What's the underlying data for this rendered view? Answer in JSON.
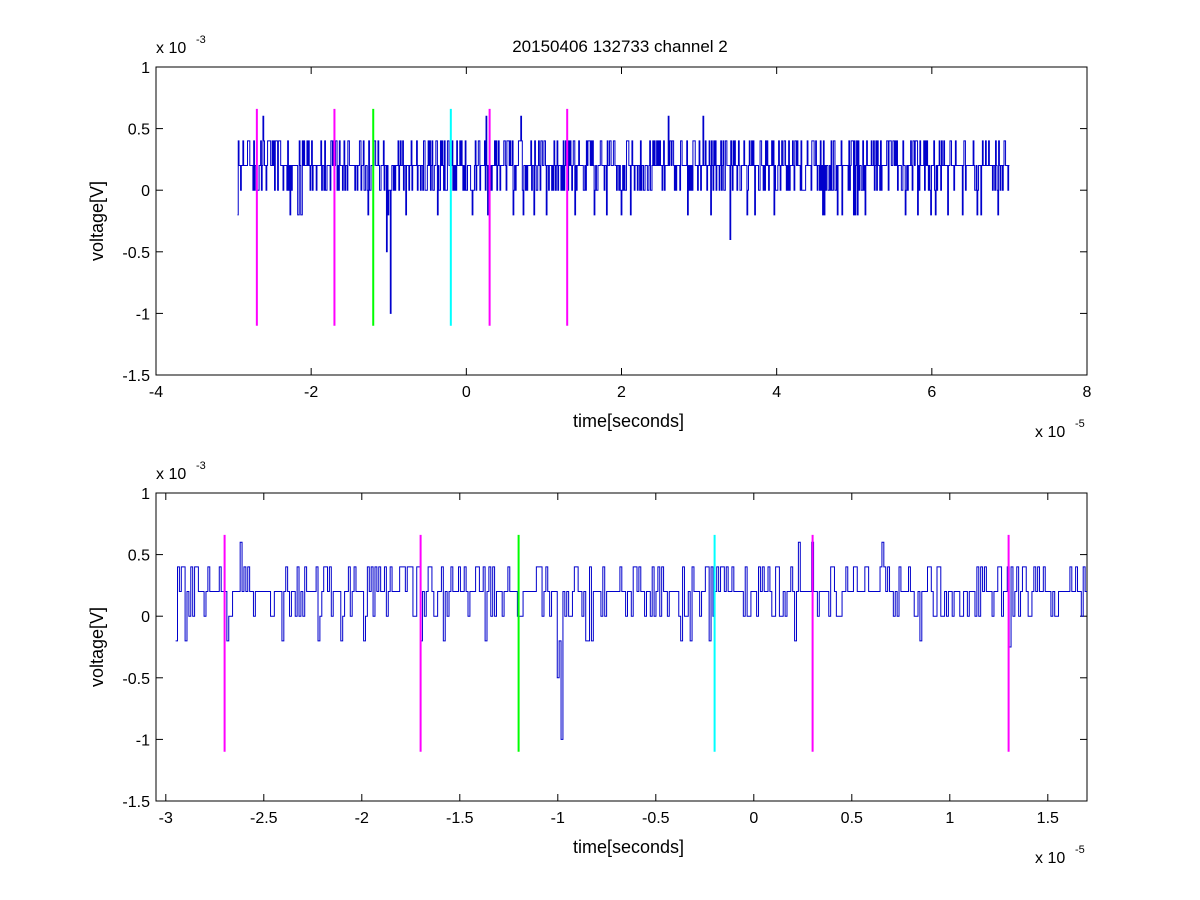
{
  "title": "20150406 132733 channel 2",
  "chart_data": [
    {
      "type": "line",
      "title": "20150406 132733 channel 2",
      "xlabel": "time[seconds]",
      "ylabel": "voltage[V]",
      "x_multiplier_label": "x 10",
      "x_multiplier_exponent": "-5",
      "y_multiplier_label": "x 10",
      "y_multiplier_exponent": "-3",
      "xlim": [
        -4e-05,
        8e-05
      ],
      "ylim": [
        -0.0015,
        0.001
      ],
      "xticks": [
        -4e-05,
        -2e-05,
        0,
        2e-05,
        4e-05,
        6e-05,
        8e-05
      ],
      "xtick_labels": [
        "-4",
        "-2",
        "0",
        "2",
        "4",
        "6",
        "8"
      ],
      "yticks": [
        -0.0015,
        -0.001,
        -0.0005,
        0,
        0.0005,
        0.001
      ],
      "ytick_labels": [
        "-1.5",
        "-1",
        "-0.5",
        "0",
        "0.5",
        "1"
      ],
      "grid": false,
      "series": [
        {
          "color": "#0000cc",
          "x_range": [
            -2.95e-05,
            7e-05
          ],
          "baseline": 0.0002,
          "noise_levels": [
            -0.0002,
            0,
            0.0002,
            0.0004
          ],
          "spikes": [
            {
              "x": -2.62e-05,
              "y": 0.0006
            },
            {
              "x": 2.5e-06,
              "y": 0.0006
            },
            {
              "x": 7e-06,
              "y": 0.0006
            },
            {
              "x": 2.6e-05,
              "y": 0.0006
            },
            {
              "x": 3.05e-05,
              "y": 0.0006
            },
            {
              "x": -9.8e-06,
              "y": -0.001
            },
            {
              "x": -1.03e-05,
              "y": -0.0005
            },
            {
              "x": 3.4e-05,
              "y": -0.0004
            },
            {
              "x": -2.95e-05,
              "y": -0.0002
            }
          ]
        }
      ],
      "markers": [
        {
          "x": -2.7e-05,
          "y0": -0.0011,
          "y1": 0.00066,
          "color": "#ff00ff"
        },
        {
          "x": -1.7e-05,
          "y0": -0.0011,
          "y1": 0.00066,
          "color": "#ff00ff"
        },
        {
          "x": -1.2e-05,
          "y0": -0.0011,
          "y1": 0.00066,
          "color": "#00ff00"
        },
        {
          "x": -2e-06,
          "y0": -0.0011,
          "y1": 0.00066,
          "color": "#00ffff"
        },
        {
          "x": 3e-06,
          "y0": -0.0011,
          "y1": 0.00066,
          "color": "#ff00ff"
        },
        {
          "x": 1.3e-05,
          "y0": -0.0011,
          "y1": 0.00066,
          "color": "#ff00ff"
        }
      ]
    },
    {
      "type": "line",
      "title": "",
      "xlabel": "time[seconds]",
      "ylabel": "voltage[V]",
      "x_multiplier_label": "x 10",
      "x_multiplier_exponent": "-5",
      "y_multiplier_label": "x 10",
      "y_multiplier_exponent": "-3",
      "xlim": [
        -3.05e-05,
        1.7e-05
      ],
      "ylim": [
        -0.0015,
        0.001
      ],
      "xticks": [
        -3e-05,
        -2.5e-05,
        -2e-05,
        -1.5e-05,
        -1e-05,
        -5e-06,
        0,
        5e-06,
        1e-05,
        1.5e-05
      ],
      "xtick_labels": [
        "-3",
        "-2.5",
        "-2",
        "-1.5",
        "-1",
        "-0.5",
        "0",
        "0.5",
        "1",
        "1.5"
      ],
      "yticks": [
        -0.0015,
        -0.001,
        -0.0005,
        0,
        0.0005,
        0.001
      ],
      "ytick_labels": [
        "-1.5",
        "-1",
        "-0.5",
        "0",
        "0.5",
        "1"
      ],
      "grid": false,
      "series": [
        {
          "color": "#0000cc",
          "x_range": [
            -2.95e-05,
            1.7e-05
          ],
          "baseline": 0.0002,
          "noise_levels": [
            -0.0002,
            0,
            0.0002,
            0.0004
          ],
          "spikes": [
            {
              "x": -2.62e-05,
              "y": 0.0006
            },
            {
              "x": 2.3e-06,
              "y": 0.0006
            },
            {
              "x": 3e-06,
              "y": 0.0006
            },
            {
              "x": 6.5e-06,
              "y": 0.0006
            },
            {
              "x": -9.8e-06,
              "y": -0.001
            },
            {
              "x": -1e-05,
              "y": -0.0005
            },
            {
              "x": 1.3e-05,
              "y": -0.00025
            },
            {
              "x": -2.95e-05,
              "y": -0.0002
            },
            {
              "x": -2.9e-05,
              "y": -0.0002
            }
          ]
        }
      ],
      "markers": [
        {
          "x": -2.7e-05,
          "y0": -0.0011,
          "y1": 0.00066,
          "color": "#ff00ff"
        },
        {
          "x": -1.7e-05,
          "y0": -0.0011,
          "y1": 0.00066,
          "color": "#ff00ff"
        },
        {
          "x": -1.2e-05,
          "y0": -0.0011,
          "y1": 0.00066,
          "color": "#00ff00"
        },
        {
          "x": -2e-06,
          "y0": -0.0011,
          "y1": 0.00066,
          "color": "#00ffff"
        },
        {
          "x": 3e-06,
          "y0": -0.0011,
          "y1": 0.00066,
          "color": "#ff00ff"
        },
        {
          "x": 1.3e-05,
          "y0": -0.0011,
          "y1": 0.00066,
          "color": "#ff00ff"
        }
      ]
    }
  ]
}
